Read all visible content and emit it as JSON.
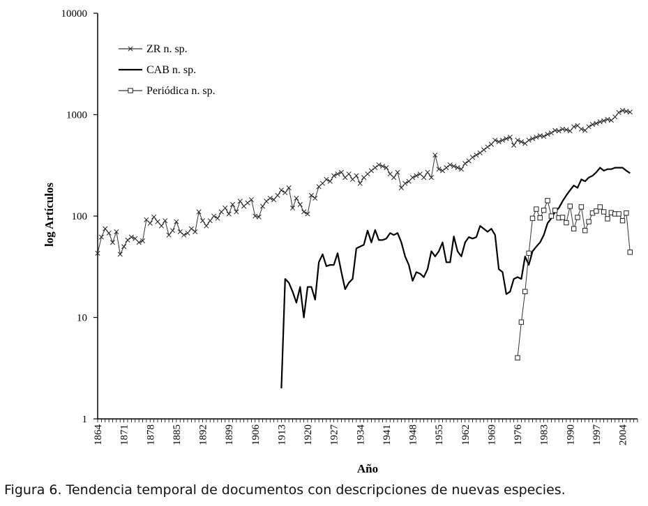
{
  "caption": "Figura 6. Tendencia temporal de documentos con descripciones de nuevas especies.",
  "chart_data": {
    "type": "line",
    "xlabel": "Año",
    "ylabel": "log Artículos",
    "yscale": "log",
    "ylim": [
      1,
      10000
    ],
    "xlim": [
      1864,
      2008
    ],
    "y_ticks": [
      1,
      10,
      100,
      1000,
      10000
    ],
    "x_ticks": [
      1864,
      1871,
      1878,
      1885,
      1892,
      1899,
      1906,
      1913,
      1920,
      1927,
      1934,
      1941,
      1948,
      1955,
      1962,
      1969,
      1976,
      1983,
      1990,
      1997,
      2004
    ],
    "grid": false,
    "legend_position": "top-left",
    "series": [
      {
        "name": "ZR n. sp.",
        "marker": "x",
        "x": [
          1864,
          1865,
          1866,
          1867,
          1868,
          1869,
          1870,
          1871,
          1872,
          1873,
          1874,
          1875,
          1876,
          1877,
          1878,
          1879,
          1880,
          1881,
          1882,
          1883,
          1884,
          1885,
          1886,
          1887,
          1888,
          1889,
          1890,
          1891,
          1892,
          1893,
          1894,
          1895,
          1896,
          1897,
          1898,
          1899,
          1900,
          1901,
          1902,
          1903,
          1904,
          1905,
          1906,
          1907,
          1908,
          1909,
          1910,
          1911,
          1912,
          1913,
          1914,
          1915,
          1916,
          1917,
          1918,
          1919,
          1920,
          1921,
          1922,
          1923,
          1924,
          1925,
          1926,
          1927,
          1928,
          1929,
          1930,
          1931,
          1932,
          1933,
          1934,
          1935,
          1936,
          1937,
          1938,
          1939,
          1940,
          1941,
          1942,
          1943,
          1944,
          1945,
          1946,
          1947,
          1948,
          1949,
          1950,
          1951,
          1952,
          1953,
          1954,
          1955,
          1956,
          1957,
          1958,
          1959,
          1960,
          1961,
          1962,
          1963,
          1964,
          1965,
          1966,
          1967,
          1968,
          1969,
          1970,
          1971,
          1972,
          1973,
          1974,
          1975,
          1976,
          1977,
          1978,
          1979,
          1980,
          1981,
          1982,
          1983,
          1984,
          1985,
          1986,
          1987,
          1988,
          1989,
          1990,
          1991,
          1992,
          1993,
          1994,
          1995,
          1996,
          1997,
          1998,
          1999,
          2000,
          2001,
          2002,
          2003,
          2004,
          2005,
          2006
        ],
        "values": [
          43,
          62,
          75,
          68,
          55,
          70,
          42,
          50,
          58,
          62,
          60,
          55,
          57,
          92,
          85,
          98,
          88,
          80,
          90,
          65,
          72,
          88,
          70,
          65,
          68,
          75,
          70,
          110,
          90,
          80,
          90,
          100,
          95,
          110,
          120,
          105,
          130,
          110,
          140,
          125,
          135,
          145,
          100,
          98,
          125,
          140,
          150,
          145,
          160,
          180,
          170,
          190,
          120,
          150,
          130,
          110,
          105,
          160,
          150,
          195,
          210,
          230,
          220,
          250,
          260,
          270,
          240,
          260,
          230,
          250,
          210,
          240,
          260,
          280,
          300,
          320,
          310,
          300,
          260,
          240,
          270,
          190,
          210,
          220,
          240,
          250,
          260,
          240,
          270,
          240,
          400,
          290,
          280,
          300,
          320,
          310,
          300,
          290,
          330,
          350,
          380,
          400,
          420,
          450,
          480,
          510,
          560,
          540,
          560,
          580,
          600,
          500,
          560,
          540,
          520,
          560,
          580,
          600,
          620,
          610,
          640,
          660,
          700,
          690,
          720,
          710,
          690,
          760,
          780,
          720,
          700,
          760,
          800,
          820,
          850,
          870,
          900,
          880,
          950,
          1050,
          1100,
          1080,
          1060
        ]
      },
      {
        "name": "CAB n. sp.",
        "marker": "none",
        "x": [
          1913,
          1914,
          1915,
          1916,
          1917,
          1918,
          1919,
          1920,
          1921,
          1922,
          1923,
          1924,
          1925,
          1926,
          1927,
          1928,
          1929,
          1930,
          1931,
          1932,
          1933,
          1934,
          1935,
          1936,
          1937,
          1938,
          1939,
          1940,
          1941,
          1942,
          1943,
          1944,
          1945,
          1946,
          1947,
          1948,
          1949,
          1950,
          1951,
          1952,
          1953,
          1954,
          1955,
          1956,
          1957,
          1958,
          1959,
          1960,
          1961,
          1962,
          1963,
          1964,
          1965,
          1966,
          1967,
          1968,
          1969,
          1970,
          1971,
          1972,
          1973,
          1974,
          1975,
          1976,
          1977,
          1978,
          1979,
          1980,
          1981,
          1982,
          1983,
          1984,
          1985,
          1986,
          1987,
          1988,
          1989,
          1990,
          1991,
          1992,
          1993,
          1994,
          1995,
          1996,
          1997,
          1998,
          1999,
          2000,
          2001,
          2002,
          2003,
          2004,
          2005,
          2006
        ],
        "values": [
          2,
          24,
          22,
          18,
          14,
          20,
          10,
          20,
          20,
          15,
          35,
          42,
          32,
          33,
          33,
          43,
          28,
          19,
          22,
          24,
          48,
          50,
          52,
          72,
          55,
          73,
          58,
          58,
          60,
          68,
          65,
          68,
          55,
          40,
          33,
          23,
          28,
          27,
          25,
          30,
          45,
          40,
          45,
          55,
          35,
          35,
          63,
          45,
          40,
          55,
          62,
          60,
          62,
          80,
          75,
          70,
          75,
          65,
          30,
          28,
          17,
          18,
          24,
          25,
          24,
          40,
          33,
          45,
          50,
          55,
          65,
          85,
          95,
          110,
          120,
          140,
          160,
          180,
          200,
          190,
          230,
          220,
          240,
          250,
          270,
          300,
          280,
          290,
          290,
          300,
          300,
          300,
          280,
          265
        ]
      },
      {
        "name": "Periódica n. sp.",
        "marker": "square",
        "x": [
          1976,
          1977,
          1978,
          1979,
          1980,
          1981,
          1982,
          1983,
          1984,
          1985,
          1986,
          1987,
          1988,
          1989,
          1990,
          1991,
          1992,
          1993,
          1994,
          1995,
          1996,
          1997,
          1998,
          1999,
          2000,
          2001,
          2002,
          2003,
          2004,
          2005,
          2006
        ],
        "values": [
          4,
          9,
          18,
          43,
          95,
          117,
          96,
          114,
          142,
          100,
          114,
          96,
          97,
          86,
          125,
          75,
          97,
          123,
          72,
          88,
          107,
          112,
          123,
          110,
          94,
          108,
          105,
          105,
          90,
          107,
          44
        ]
      }
    ]
  }
}
